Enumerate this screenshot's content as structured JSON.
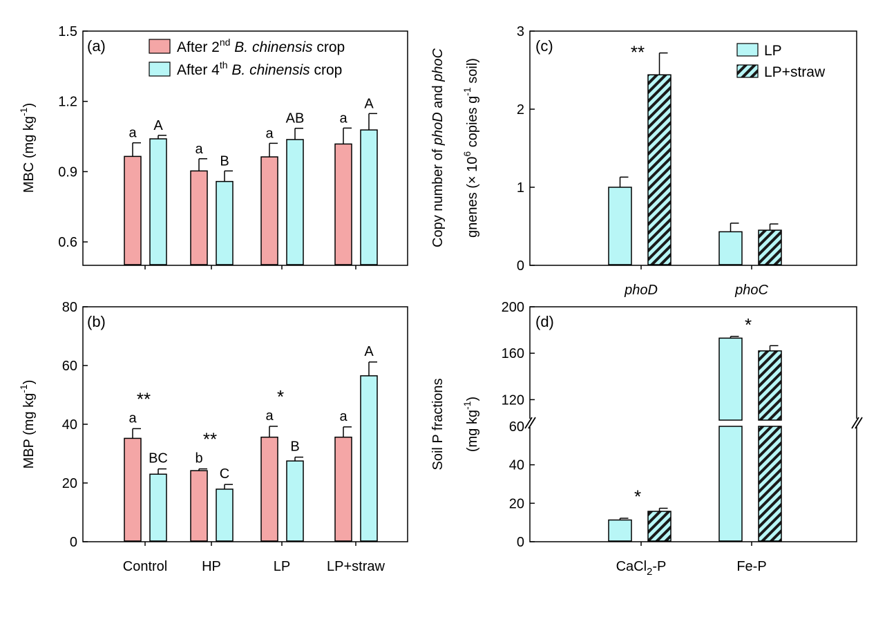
{
  "colors": {
    "red": "#f4a6a6",
    "cyan": "#b8f6f6",
    "hatch": "#1a1a1a",
    "ink": "#000000"
  },
  "chart_data": [
    {
      "panel": "(a)",
      "type": "bar",
      "ylabel_main": "MBC (mg kg",
      "ylabel_sup": "-1",
      "ylabel_end": ")",
      "ylim": [
        0.5,
        1.5
      ],
      "yticks": [
        "0.6",
        "0.9",
        "1.2",
        "1.5"
      ],
      "yticks_num": [
        0.6,
        0.9,
        1.2,
        1.5
      ],
      "categories": [
        "Control",
        "HP",
        "LP",
        "LP+straw"
      ],
      "legend": [
        {
          "pre": "After 2",
          "sup": "nd",
          "italic": " B. chinensis",
          "post": " crop"
        },
        {
          "pre": "After 4",
          "sup": "th",
          "italic": " B. chinensis",
          "post": " crop"
        }
      ],
      "series": [
        {
          "name": "After 2nd B. chinensis crop",
          "values": [
            0.965,
            0.903,
            0.963,
            1.018
          ],
          "errors": [
            0.058,
            0.052,
            0.058,
            0.068
          ],
          "letters": [
            "a",
            "a",
            "a",
            "a"
          ]
        },
        {
          "name": "After 4th B. chinensis crop",
          "values": [
            1.04,
            0.858,
            1.037,
            1.078
          ],
          "errors": [
            0.015,
            0.045,
            0.048,
            0.07
          ],
          "letters": [
            "A",
            "B",
            "AB",
            "A"
          ]
        }
      ],
      "stars": [
        "",
        "",
        "",
        ""
      ]
    },
    {
      "panel": "(b)",
      "type": "bar",
      "ylabel_main": "MBP (mg kg",
      "ylabel_sup": "-1",
      "ylabel_end": ")",
      "ylim": [
        0,
        80
      ],
      "yticks": [
        "0",
        "20",
        "40",
        "60",
        "80"
      ],
      "yticks_num": [
        0,
        20,
        40,
        60,
        80
      ],
      "categories": [
        "Control",
        "HP",
        "LP",
        "LP+straw"
      ],
      "series": [
        {
          "name": "After 2nd B. chinensis crop",
          "values": [
            35.2,
            24.2,
            35.6,
            35.6
          ],
          "errors": [
            3.3,
            0.6,
            3.7,
            3.5
          ],
          "letters": [
            "a",
            "b",
            "a",
            "a"
          ]
        },
        {
          "name": "After 4th B. chinensis crop",
          "values": [
            23.0,
            17.9,
            27.5,
            56.5
          ],
          "errors": [
            1.8,
            1.6,
            1.3,
            4.7
          ],
          "letters": [
            "BC",
            "C",
            "B",
            "A"
          ]
        }
      ],
      "stars": [
        "**",
        "**",
        "*",
        ""
      ]
    },
    {
      "panel": "(c)",
      "type": "bar",
      "ylabel_line1_pre": "Copy number of ",
      "ylabel_line1_i1": "phoD",
      "ylabel_line1_mid": " and ",
      "ylabel_line1_i2": "phoC",
      "ylabel_line2_pre": "gnenes (× 10",
      "ylabel_line2_sup1": "6",
      "ylabel_line2_mid": " copies g",
      "ylabel_line2_sup2": "-1",
      "ylabel_line2_end": " soil)",
      "ylim": [
        0,
        3
      ],
      "yticks": [
        "0",
        "1",
        "2",
        "3"
      ],
      "yticks_num": [
        0,
        1,
        2,
        3
      ],
      "categories": [
        "phoD",
        "phoC"
      ],
      "legend": [
        {
          "label": "LP"
        },
        {
          "label": "LP+straw"
        }
      ],
      "series": [
        {
          "name": "LP",
          "values": [
            1.0,
            0.43
          ],
          "errors": [
            0.13,
            0.11
          ]
        },
        {
          "name": "LP+straw",
          "values": [
            2.44,
            0.45
          ],
          "errors": [
            0.28,
            0.08
          ]
        }
      ],
      "stars": [
        "**",
        ""
      ]
    },
    {
      "panel": "(d)",
      "type": "bar",
      "ylabel_line1": "Soil P fractions",
      "ylabel_line2_pre": "(mg kg",
      "ylabel_line2_sup": "-1",
      "ylabel_line2_end": ")",
      "ylim_lower": [
        0,
        60
      ],
      "ylim_upper": [
        100,
        200
      ],
      "yticks": [
        "0",
        "20",
        "40",
        "60",
        "120",
        "160",
        "200"
      ],
      "yticks_num": [
        0,
        20,
        40,
        60,
        120,
        160,
        200
      ],
      "axis_break": true,
      "categories": [
        {
          "pre": "CaCl",
          "sub": "2",
          "post": "-P"
        },
        {
          "pre": "Fe-P",
          "sub": "",
          "post": ""
        }
      ],
      "series": [
        {
          "name": "LP",
          "values": [
            11.3,
            173
          ],
          "errors": [
            0.9,
            1.5
          ]
        },
        {
          "name": "LP+straw",
          "values": [
            15.8,
            162
          ],
          "errors": [
            1.6,
            4.5
          ]
        }
      ],
      "stars": [
        "*",
        "*"
      ]
    }
  ]
}
